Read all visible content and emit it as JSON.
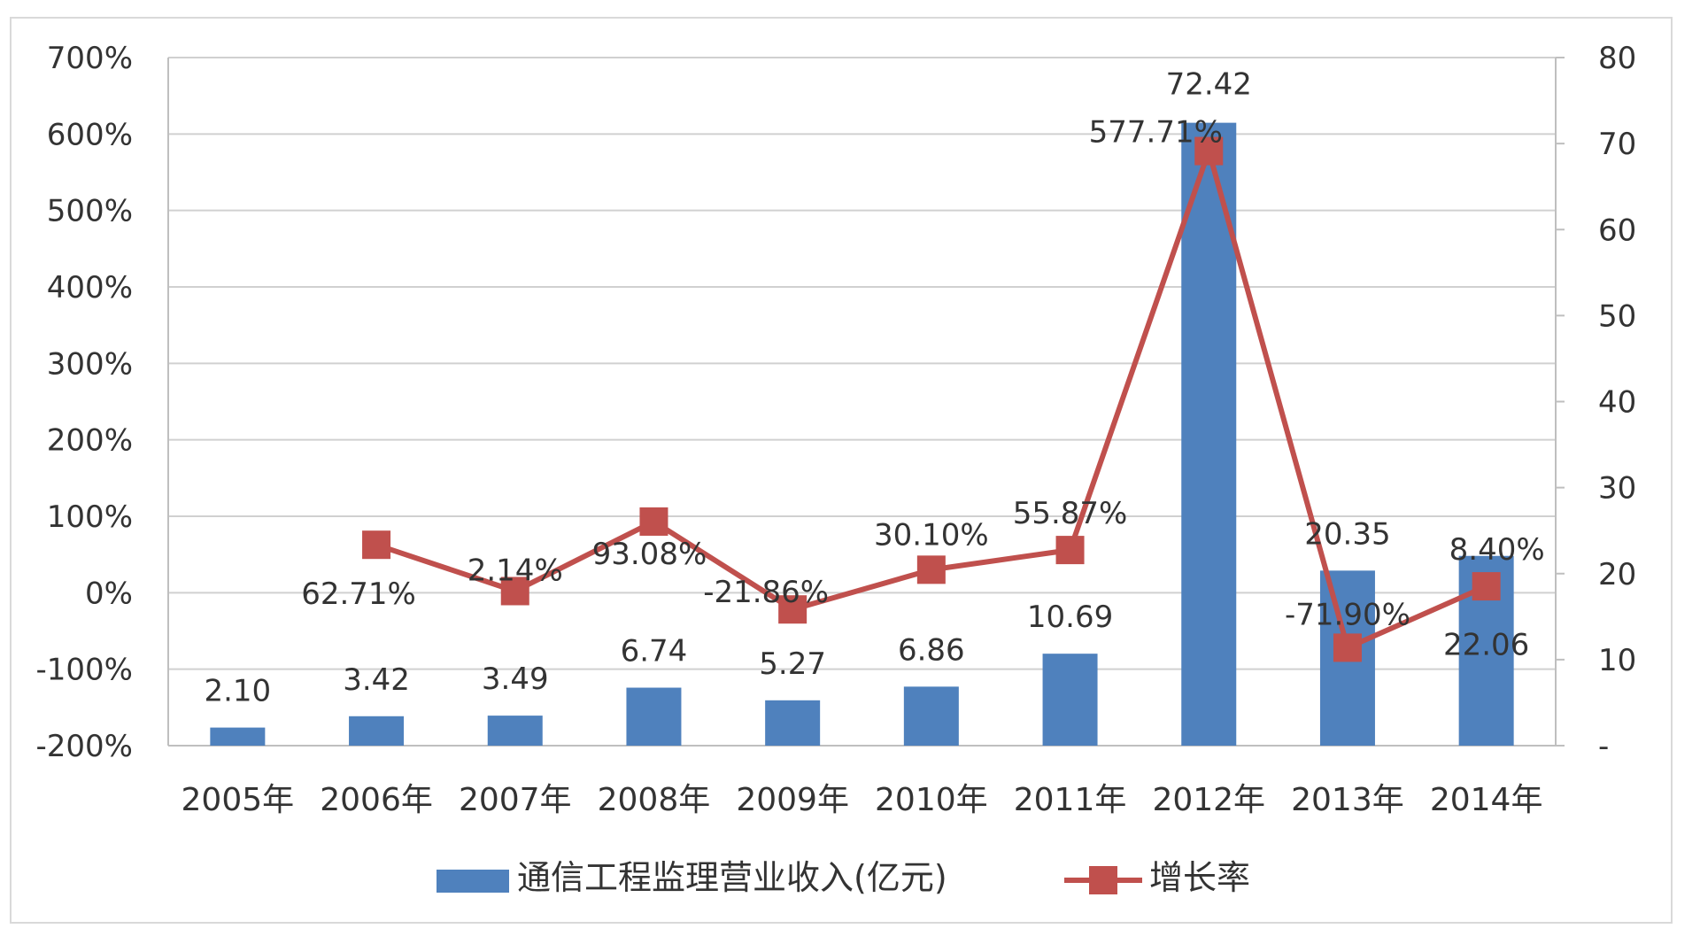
{
  "chart_data": {
    "type": "bar+line",
    "categories": [
      "2005年",
      "2006年",
      "2007年",
      "2008年",
      "2009年",
      "2010年",
      "2011年",
      "2012年",
      "2013年",
      "2014年"
    ],
    "series": [
      {
        "name": "通信工程监理营业收入(亿元)",
        "type": "bar",
        "axis": "right",
        "color": "#4F81BD",
        "values": [
          2.1,
          3.42,
          3.49,
          6.74,
          5.27,
          6.86,
          10.69,
          72.42,
          20.35,
          22.06
        ],
        "labels": [
          "2.10",
          "3.42",
          "3.49",
          "6.74",
          "5.27",
          "6.86",
          "10.69",
          "72.42",
          "20.35",
          "22.06"
        ]
      },
      {
        "name": "增长率",
        "type": "line",
        "axis": "left",
        "color": "#C0504D",
        "x": [
          "2006年",
          "2007年",
          "2008年",
          "2009年",
          "2010年",
          "2011年",
          "2012年",
          "2013年",
          "2014年"
        ],
        "values": [
          62.71,
          2.14,
          93.08,
          -21.86,
          30.1,
          55.87,
          577.71,
          -71.9,
          8.4
        ],
        "labels": [
          "62.71%",
          "2.14%",
          "93.08%",
          "-21.86%",
          "30.10%",
          "55.87%",
          "577.71%",
          "-71.90%",
          "8.40%"
        ]
      }
    ],
    "y_left": {
      "range": [
        -200,
        700
      ],
      "ticks": [
        "700%",
        "600%",
        "500%",
        "400%",
        "300%",
        "200%",
        "100%",
        "0%",
        "-100%",
        "-200%"
      ]
    },
    "y_right": {
      "range": [
        0,
        80
      ],
      "ticks": [
        "80",
        "70",
        "60",
        "50",
        "40",
        "30",
        "20",
        "10",
        "-"
      ]
    },
    "grid": true,
    "legend": "bottom"
  }
}
